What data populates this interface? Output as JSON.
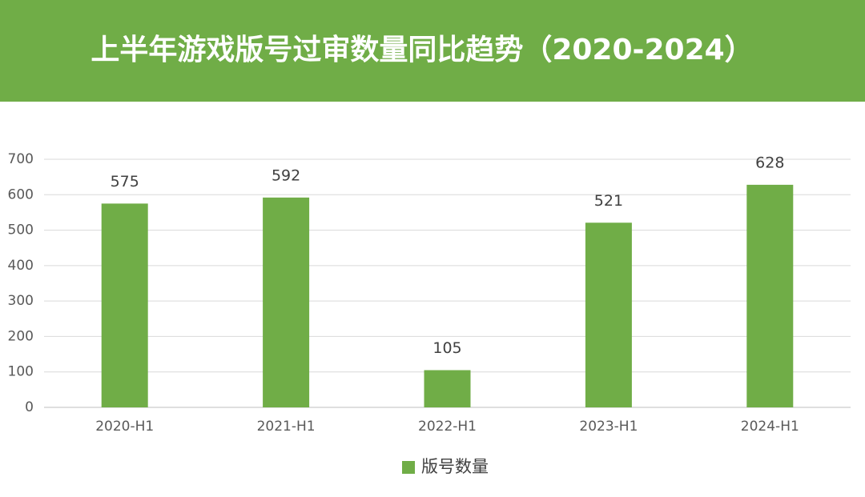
{
  "chart_data": {
    "type": "bar",
    "title": "上半年游戏版号过审数量同比趋势（2020-2024）",
    "categories": [
      "2020-H1",
      "2021-H1",
      "2022-H1",
      "2023-H1",
      "2024-H1"
    ],
    "series": [
      {
        "name": "版号数量",
        "color": "#70ad47",
        "values": [
          575,
          592,
          105,
          521,
          628
        ]
      }
    ],
    "ylim": [
      0,
      700
    ],
    "yticks": [
      0,
      100,
      200,
      300,
      400,
      500,
      600,
      700
    ],
    "grid": true,
    "legend": "bottom"
  }
}
